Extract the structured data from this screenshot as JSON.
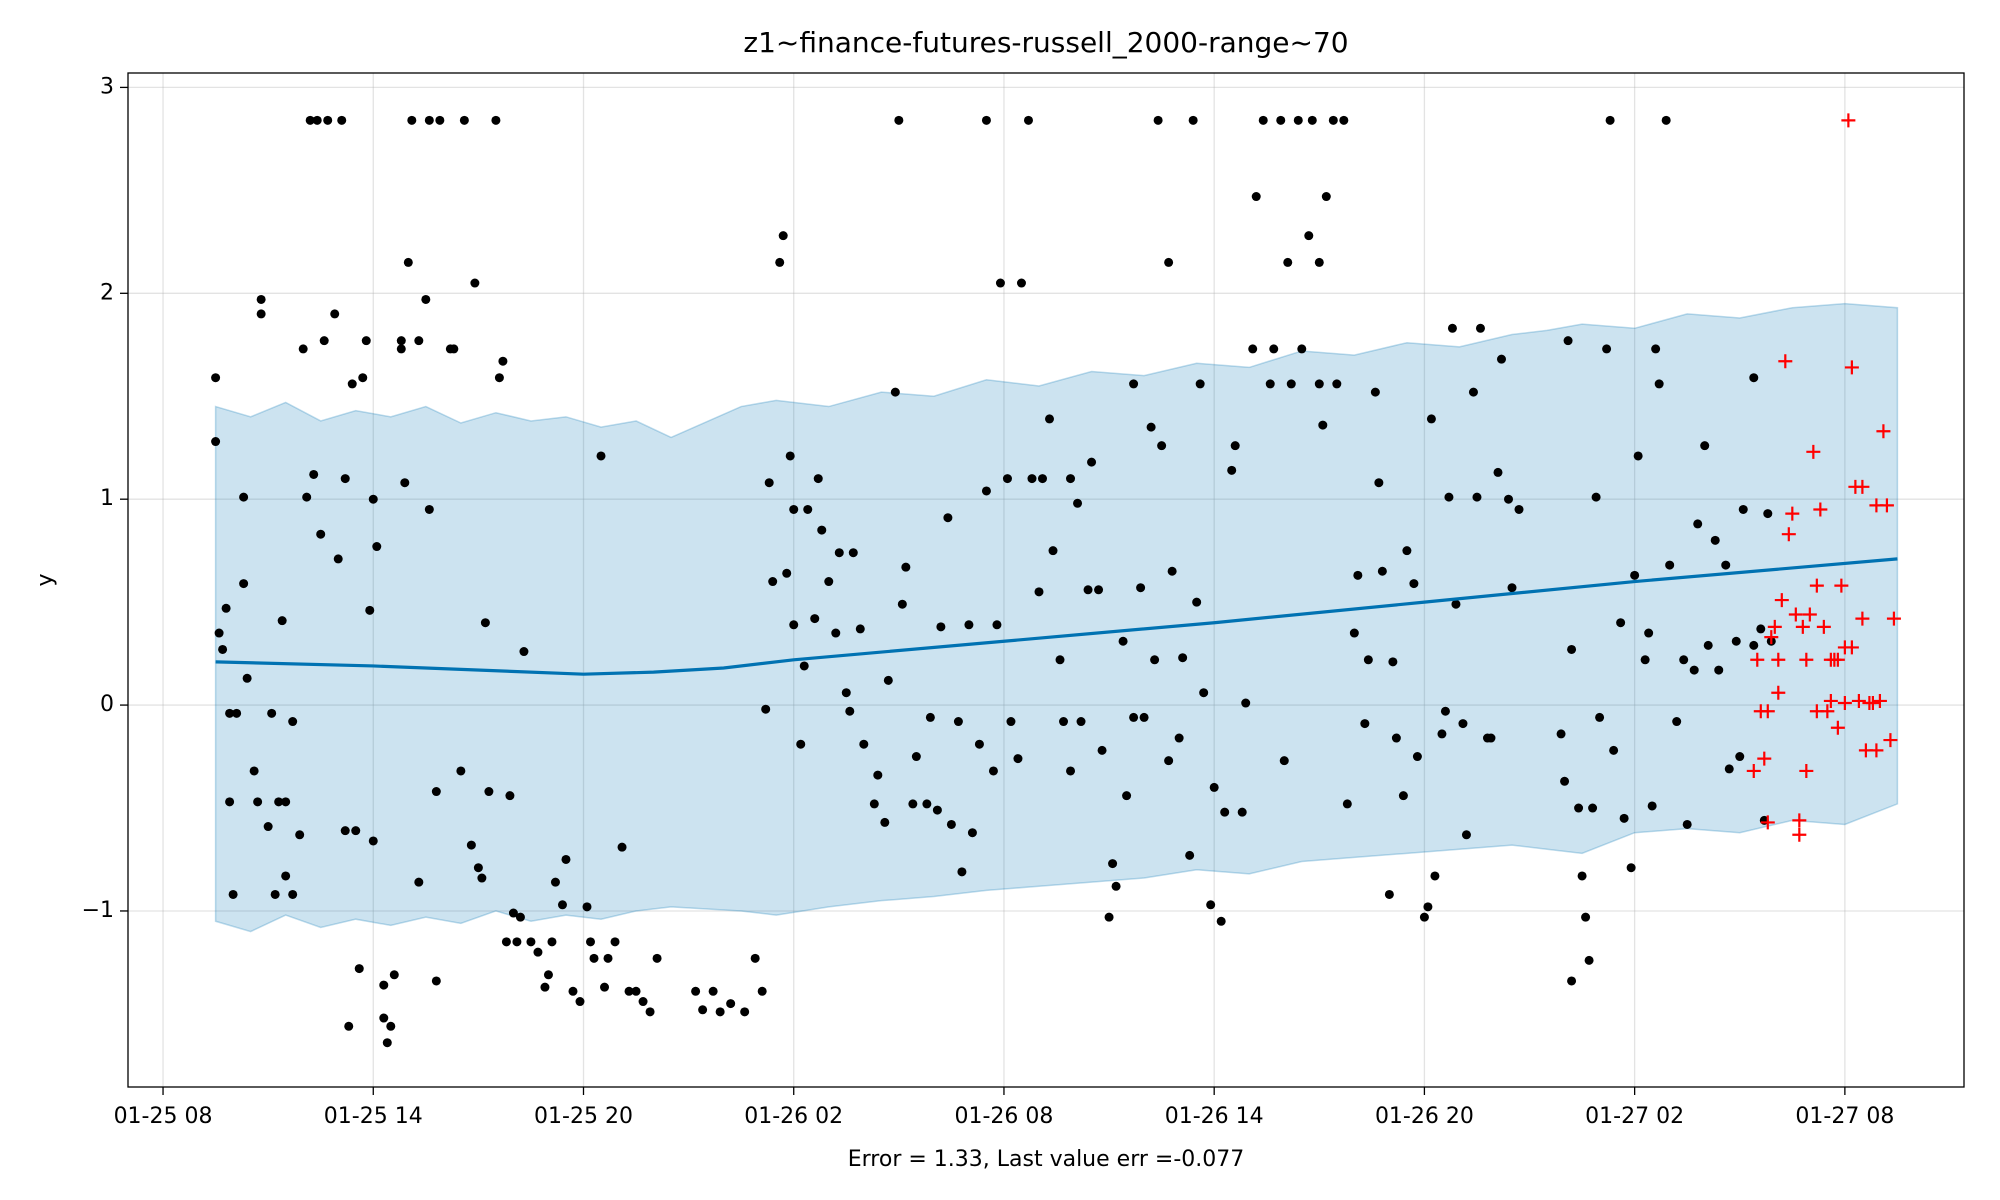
{
  "chart_data": {
    "type": "forecast",
    "title": "z1~finance-futures-russell_2000-range~70",
    "xlabel": "Error = 1.33, Last value err =-0.077",
    "ylabel": "y",
    "xlim": [
      7.0,
      59.4
    ],
    "xticks": [
      {
        "value": 8,
        "label": "01-25 08"
      },
      {
        "value": 14,
        "label": "01-25 14"
      },
      {
        "value": 20,
        "label": "01-25 20"
      },
      {
        "value": 26,
        "label": "01-26 02"
      },
      {
        "value": 32,
        "label": "01-26 08"
      },
      {
        "value": 38,
        "label": "01-26 14"
      },
      {
        "value": 44,
        "label": "01-26 20"
      },
      {
        "value": 50,
        "label": "01-27 02"
      },
      {
        "value": 56,
        "label": "01-27 08"
      }
    ],
    "ylim": [
      -1.855,
      3.07
    ],
    "yticks": [
      {
        "value": -1,
        "label": "−1"
      },
      0,
      1,
      2,
      3
    ],
    "grid": true,
    "band": {
      "color": "#0072b2",
      "x": [
        9.5,
        10.5,
        11.5,
        12.5,
        13.5,
        14.5,
        15.5,
        16.5,
        17.5,
        18.5,
        19.5,
        20.5,
        21.5,
        22.5,
        24.5,
        25.5,
        27,
        28.5,
        30,
        31.5,
        33,
        34.5,
        36,
        37.5,
        39,
        40.5,
        42,
        43.5,
        45,
        46.5,
        47.5,
        48.5,
        50,
        51.5,
        53,
        54.5,
        56,
        57.5
      ],
      "upper": [
        1.45,
        1.4,
        1.47,
        1.38,
        1.43,
        1.4,
        1.45,
        1.37,
        1.42,
        1.38,
        1.4,
        1.35,
        1.38,
        1.3,
        1.45,
        1.48,
        1.45,
        1.52,
        1.5,
        1.58,
        1.55,
        1.62,
        1.6,
        1.66,
        1.64,
        1.72,
        1.7,
        1.76,
        1.74,
        1.8,
        1.82,
        1.85,
        1.83,
        1.9,
        1.88,
        1.93,
        1.95,
        1.93
      ],
      "lower": [
        -1.05,
        -1.1,
        -1.02,
        -1.08,
        -1.04,
        -1.07,
        -1.03,
        -1.06,
        -1.0,
        -1.05,
        -1.02,
        -1.04,
        -1.0,
        -0.98,
        -1.0,
        -1.02,
        -0.98,
        -0.95,
        -0.93,
        -0.9,
        -0.88,
        -0.86,
        -0.84,
        -0.8,
        -0.82,
        -0.76,
        -0.74,
        -0.72,
        -0.7,
        -0.68,
        -0.7,
        -0.72,
        -0.62,
        -0.6,
        -0.62,
        -0.56,
        -0.58,
        -0.48
      ]
    },
    "trend": {
      "color": "#0072b2",
      "x": [
        9.5,
        14,
        20,
        22,
        24,
        26,
        32,
        38,
        44,
        50,
        57.5
      ],
      "values": [
        0.21,
        0.19,
        0.15,
        0.16,
        0.18,
        0.22,
        0.31,
        0.4,
        0.5,
        0.6,
        0.71
      ]
    },
    "series": [
      {
        "color": "#000000",
        "marker": "dot",
        "x": [
          9.5,
          9.5,
          9.6,
          9.7,
          9.8,
          9.9,
          9.9,
          10.1,
          10.0,
          10.3,
          10.3,
          10.4,
          10.6,
          10.7,
          10.8,
          10.8,
          11.0,
          11.1,
          11.2,
          11.3,
          11.4,
          11.5,
          11.5,
          11.7,
          11.7,
          11.9,
          12.0,
          12.1,
          12.2,
          12.3,
          12.4,
          12.5,
          12.6,
          12.7,
          12.9,
          13.0,
          13.1,
          13.2,
          13.2,
          13.3,
          13.4,
          13.5,
          13.6,
          13.7,
          13.8,
          13.9,
          14.0,
          14.0,
          14.1,
          14.3,
          14.3,
          14.4,
          14.5,
          14.6,
          14.8,
          14.8,
          14.9,
          15.0,
          15.1,
          15.3,
          15.3,
          15.5,
          15.6,
          15.6,
          15.8,
          15.8,
          15.9,
          16.2,
          16.3,
          16.5,
          16.6,
          16.8,
          16.9,
          17.0,
          17.1,
          17.2,
          17.3,
          17.5,
          17.6,
          17.7,
          17.8,
          17.9,
          18.0,
          18.1,
          18.2,
          18.3,
          18.5,
          18.7,
          18.9,
          19.0,
          19.1,
          19.2,
          19.4,
          19.5,
          19.7,
          19.9,
          20.1,
          20.2,
          20.3,
          20.5,
          20.6,
          20.7,
          20.9,
          21.1,
          21.3,
          21.5,
          21.7,
          21.9,
          22.1,
          23.2,
          23.4,
          23.7,
          23.9,
          24.2,
          24.6,
          24.9,
          25.1,
          25.2,
          25.3,
          25.4,
          25.6,
          25.7,
          25.8,
          25.9,
          26.0,
          26.0,
          26.2,
          26.3,
          26.4,
          26.6,
          26.7,
          26.8,
          27.0,
          27.2,
          27.3,
          27.5,
          27.6,
          27.7,
          27.9,
          28.0,
          28.3,
          28.4,
          28.6,
          28.7,
          28.9,
          29.0,
          29.1,
          29.2,
          29.4,
          29.5,
          29.8,
          29.9,
          30.1,
          30.2,
          30.4,
          30.5,
          30.7,
          30.8,
          31.0,
          31.1,
          31.3,
          31.5,
          31.5,
          31.7,
          31.8,
          31.9,
          32.1,
          32.2,
          32.4,
          32.5,
          32.7,
          32.8,
          33.0,
          33.1,
          33.3,
          33.4,
          33.6,
          33.7,
          33.9,
          33.9,
          34.1,
          34.2,
          34.4,
          34.5,
          34.7,
          34.8,
          35.0,
          35.1,
          35.2,
          35.4,
          35.5,
          35.7,
          35.7,
          35.9,
          36.0,
          36.2,
          36.3,
          36.4,
          36.5,
          36.7,
          36.7,
          36.8,
          37.0,
          37.1,
          37.3,
          37.4,
          37.5,
          37.6,
          37.7,
          37.9,
          38.0,
          38.2,
          38.3,
          38.5,
          38.6,
          38.8,
          38.9,
          39.1,
          39.2,
          39.4,
          39.6,
          39.7,
          39.9,
          40.0,
          40.1,
          40.2,
          40.4,
          40.5,
          40.7,
          40.8,
          41.0,
          41.0,
          41.1,
          41.2,
          41.4,
          41.5,
          41.7,
          41.8,
          42.0,
          42.1,
          42.3,
          42.4,
          42.6,
          42.7,
          42.8,
          43.0,
          43.1,
          43.2,
          43.4,
          43.5,
          43.7,
          43.8,
          44.0,
          44.1,
          44.2,
          44.3,
          44.5,
          44.6,
          44.7,
          44.8,
          44.9,
          45.1,
          45.2,
          45.4,
          45.5,
          45.6,
          45.8,
          45.9,
          46.1,
          46.2,
          46.4,
          46.5,
          46.7,
          47.9,
          48.0,
          48.1,
          48.2,
          48.2,
          48.4,
          48.5,
          48.6,
          48.7,
          48.8,
          48.9,
          49.0,
          49.2,
          49.3,
          49.4,
          49.6,
          49.7,
          49.9,
          50.0,
          50.1,
          50.3,
          50.4,
          50.5,
          50.6,
          50.7,
          50.9,
          51.0,
          51.2,
          51.4,
          51.5,
          51.7,
          51.8,
          52.0,
          52.1,
          52.3,
          52.4,
          52.6,
          52.7,
          52.9,
          53.0,
          53.1,
          53.4,
          53.4,
          53.6,
          53.7,
          53.8,
          53.9
        ],
        "values": [
          1.59,
          1.28,
          0.35,
          0.27,
          0.47,
          -0.47,
          -0.04,
          -0.04,
          -0.92,
          0.59,
          1.01,
          0.13,
          -0.32,
          -0.47,
          1.97,
          1.9,
          -0.59,
          -0.04,
          -0.92,
          -0.47,
          0.41,
          -0.83,
          -0.47,
          -0.08,
          -0.92,
          -0.63,
          1.73,
          1.01,
          2.84,
          1.12,
          2.84,
          0.83,
          1.77,
          2.84,
          1.9,
          0.71,
          2.84,
          -0.61,
          1.1,
          -1.56,
          1.56,
          -0.61,
          -1.28,
          1.59,
          1.77,
          0.46,
          -0.66,
          1.0,
          0.77,
          -1.36,
          -1.52,
          -1.64,
          -1.56,
          -1.31,
          1.73,
          1.77,
          1.08,
          2.15,
          2.84,
          -0.86,
          1.77,
          1.97,
          2.84,
          0.95,
          -0.42,
          -1.34,
          2.84,
          1.73,
          1.73,
          -0.32,
          2.84,
          -0.68,
          2.05,
          -0.79,
          -0.84,
          0.4,
          -0.42,
          2.84,
          1.59,
          1.67,
          -1.15,
          -0.44,
          -1.01,
          -1.15,
          -1.03,
          0.26,
          -1.15,
          -1.2,
          -1.37,
          -1.31,
          -1.15,
          -0.86,
          -0.97,
          -0.75,
          -1.39,
          -1.44,
          -0.98,
          -1.15,
          -1.23,
          1.21,
          -1.37,
          -1.23,
          -1.15,
          -0.69,
          -1.39,
          -1.39,
          -1.44,
          -1.49,
          -1.23,
          -1.39,
          -1.48,
          -1.39,
          -1.49,
          -1.45,
          -1.49,
          -1.23,
          -1.39,
          -0.02,
          1.08,
          0.6,
          2.15,
          2.28,
          0.64,
          1.21,
          0.39,
          0.95,
          -0.19,
          0.19,
          0.95,
          0.42,
          1.1,
          0.85,
          0.6,
          0.35,
          0.74,
          0.06,
          -0.03,
          0.74,
          0.37,
          -0.19,
          -0.48,
          -0.34,
          -0.57,
          0.12,
          1.52,
          2.84,
          0.49,
          0.67,
          -0.48,
          -0.25,
          -0.48,
          -0.06,
          -0.51,
          0.38,
          0.91,
          -0.58,
          -0.08,
          -0.81,
          0.39,
          -0.62,
          -0.19,
          2.84,
          1.04,
          -0.32,
          0.39,
          2.05,
          1.1,
          -0.08,
          -0.26,
          2.05,
          2.84,
          1.1,
          0.55,
          1.1,
          1.39,
          0.75,
          0.22,
          -0.08,
          1.1,
          -0.32,
          0.98,
          -0.08,
          0.56,
          1.18,
          0.56,
          -0.22,
          -1.03,
          -0.77,
          -0.88,
          0.31,
          -0.44,
          1.56,
          -0.06,
          0.57,
          -0.06,
          1.35,
          0.22,
          2.84,
          1.26,
          -0.27,
          2.15,
          0.65,
          -0.16,
          0.23,
          -0.73,
          2.84,
          0.5,
          1.56,
          0.06,
          -0.97,
          -0.4,
          -1.05,
          -0.52,
          1.14,
          1.26,
          -0.52,
          0.01,
          1.73,
          2.47,
          2.84,
          1.56,
          1.73,
          2.84,
          -0.27,
          2.15,
          1.56,
          2.84,
          1.73,
          2.28,
          2.84,
          2.15,
          1.56,
          1.36,
          2.47,
          2.84,
          1.56,
          2.84,
          -0.48,
          0.35,
          0.63,
          -0.09,
          0.22,
          1.52,
          1.08,
          0.65,
          -0.92,
          0.21,
          -0.16,
          -0.44,
          0.75,
          0.59,
          -0.25,
          -1.03,
          -0.98,
          1.39,
          -0.83,
          -0.14,
          -0.03,
          1.01,
          1.83,
          0.49,
          -0.09,
          -0.63,
          1.52,
          1.01,
          1.83,
          -0.16,
          -0.16,
          1.13,
          1.68,
          1.0,
          0.57,
          0.95,
          -0.14,
          -0.37,
          1.77,
          -1.34,
          0.27,
          -0.5,
          -0.83,
          -1.03,
          -1.24,
          -0.5,
          1.01,
          -0.06,
          1.73,
          2.84,
          -0.22,
          0.4,
          -0.55,
          -0.79,
          0.63,
          1.21,
          0.22,
          0.35,
          -0.49,
          1.73,
          1.56,
          2.84,
          0.68,
          -0.08,
          0.22,
          -0.58,
          0.17,
          0.88,
          1.26,
          0.29,
          0.8,
          0.17,
          0.68,
          -0.31,
          0.31,
          -0.25,
          0.95,
          1.59,
          0.29,
          0.37,
          -0.56,
          0.93,
          0.31
        ]
      },
      {
        "color": "#ff0000",
        "marker": "plus",
        "x": [
          53.4,
          53.5,
          53.6,
          53.7,
          53.8,
          53.8,
          53.9,
          54.0,
          54.1,
          54.1,
          54.2,
          54.3,
          54.4,
          54.5,
          54.6,
          54.7,
          54.7,
          54.8,
          54.9,
          54.9,
          55.0,
          55.1,
          55.2,
          55.2,
          55.3,
          55.4,
          55.5,
          55.6,
          55.6,
          55.7,
          55.8,
          55.8,
          55.9,
          56.0,
          56.0,
          56.1,
          56.2,
          56.2,
          56.3,
          56.4,
          56.5,
          56.5,
          56.6,
          56.7,
          56.8,
          56.9,
          56.9,
          57.0,
          57.1,
          57.2,
          57.3,
          57.4
        ],
        "values": [
          -0.32,
          0.22,
          -0.03,
          -0.26,
          -0.57,
          -0.03,
          0.33,
          0.38,
          0.06,
          0.22,
          0.51,
          1.67,
          0.83,
          0.93,
          0.44,
          -0.56,
          -0.63,
          0.38,
          -0.32,
          0.22,
          0.44,
          1.23,
          -0.03,
          0.58,
          0.95,
          0.38,
          -0.03,
          0.02,
          0.22,
          0.22,
          0.22,
          -0.11,
          0.58,
          0.01,
          0.28,
          2.84,
          1.64,
          0.28,
          1.06,
          0.02,
          1.06,
          0.42,
          -0.22,
          0.01,
          0.01,
          -0.22,
          0.97,
          0.02,
          1.33,
          0.97,
          -0.17,
          0.42
        ]
      }
    ]
  }
}
